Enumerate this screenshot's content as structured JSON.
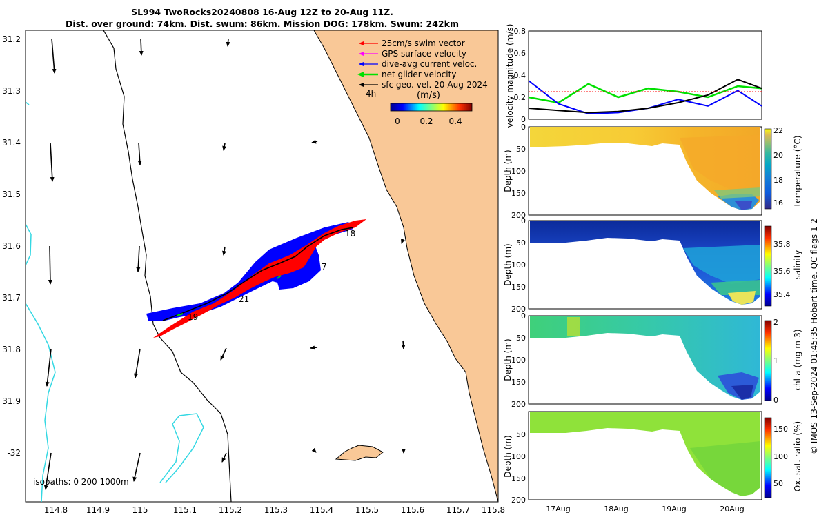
{
  "title": {
    "line1": "SL994 TwoRocks20240808 16-Aug 12Z to 20-Aug 11Z.",
    "line2": "Dist. over ground: 74km. Dist. swum: 86km. Mission DOG: 178km. Swum: 242km"
  },
  "colors": {
    "land": "#f9c897",
    "isobath": "#34d8e3",
    "track": "#000000",
    "swim": "#ff0000",
    "gps": "#ff00ff",
    "current": "#0000ff",
    "net": "#00e000"
  },
  "map": {
    "legend": [
      {
        "label": "25cm/s swim vector",
        "color": "#ff0000",
        "icon": "red-arrow-icon"
      },
      {
        "label": "GPS surface velocity",
        "color": "#ff00ff",
        "icon": "magenta-arrow-icon"
      },
      {
        "label": "dive-avg current veloc.",
        "color": "#0000ff",
        "icon": "blue-arrow-icon"
      },
      {
        "label": "net glider velocity",
        "color": "#00e000",
        "icon": "green-arrow-icon"
      },
      {
        "label": "sfc geo. vel. 20-Aug-2024",
        "color": "#000000",
        "icon": "black-arrow-icon"
      }
    ],
    "legend_extra": "4h",
    "colorbar_label": "(m/s)",
    "colorbar_ticks": [
      "0",
      "0.2",
      "0.4"
    ],
    "isobaths_note": "isobaths: 0   200  1000m",
    "x_ticks": [
      "114.8",
      "114.9",
      "115",
      "115.1",
      "115.2",
      "115.3",
      "115.4",
      "115.5",
      "115.6",
      "115.7",
      "115.8"
    ],
    "y_ticks": [
      "31.2",
      "31.3",
      "31.4",
      "31.5",
      "31.6",
      "31.7",
      "31.8",
      "31.9",
      "-32"
    ],
    "day_labels": [
      "18",
      "7",
      "21",
      "19"
    ]
  },
  "chart_data": [
    {
      "type": "line",
      "title": "velocity magnitude",
      "ylabel": "velocity magnitude (m/s)",
      "ylim": [
        0,
        0.8
      ],
      "y_ticks": [
        "0",
        "0.2",
        "0.4",
        "0.6",
        "0.8"
      ],
      "x": [
        0,
        0.5,
        1,
        1.5,
        2,
        2.5,
        3,
        3.5,
        3.9
      ],
      "series": [
        {
          "name": "net glider velocity",
          "color": "#00e000",
          "values": [
            0.2,
            0.15,
            0.32,
            0.2,
            0.28,
            0.25,
            0.2,
            0.3,
            0.28
          ]
        },
        {
          "name": "dive-avg current",
          "color": "#0000ff",
          "values": [
            0.35,
            0.14,
            0.05,
            0.06,
            0.1,
            0.18,
            0.12,
            0.26,
            0.12
          ]
        },
        {
          "name": "sfc geo. vel.",
          "color": "#000000",
          "values": [
            0.1,
            0.08,
            0.06,
            0.07,
            0.1,
            0.15,
            0.22,
            0.36,
            0.28
          ]
        },
        {
          "name": "swim speed",
          "color": "#ff0000",
          "values": [
            0.25,
            0.25,
            0.25,
            0.25,
            0.25,
            0.25,
            0.25,
            0.25,
            0.25
          ]
        }
      ]
    },
    {
      "type": "heatmap",
      "variable": "temperature",
      "colorbar_label": "temperature (°C)",
      "colorbar_ticks": [
        "22",
        "20",
        "18",
        "16"
      ],
      "ylabel": "Depth (m)",
      "y_ticks": [
        "0",
        "50",
        "100",
        "150",
        "200"
      ]
    },
    {
      "type": "heatmap",
      "variable": "salinity",
      "colorbar_label": "salinity",
      "colorbar_ticks": [
        "35.8",
        "35.6",
        "35.4"
      ],
      "ylabel": "Depth (m)",
      "y_ticks": [
        "0",
        "50",
        "100",
        "150",
        "200"
      ]
    },
    {
      "type": "heatmap",
      "variable": "chl-a",
      "colorbar_label": "chl-a (mg m-3)",
      "colorbar_ticks": [
        "2",
        "1",
        "0"
      ],
      "ylabel": "Depth (m)",
      "y_ticks": [
        "0",
        "50",
        "100",
        "150",
        "200"
      ]
    },
    {
      "type": "heatmap",
      "variable": "oxygen saturation",
      "colorbar_label": "Ox. sat. ratio (%)",
      "colorbar_ticks": [
        "150",
        "100",
        "50"
      ],
      "ylabel": "Depth (m)",
      "y_ticks": [
        "50",
        "100",
        "150",
        "200"
      ]
    }
  ],
  "time_axis": [
    "17Aug",
    "18Aug",
    "19Aug",
    "20Aug"
  ],
  "footer_note": "© IMOS 13-Sep-2024 01:45:35 Hobart time. QC flags 1  2"
}
